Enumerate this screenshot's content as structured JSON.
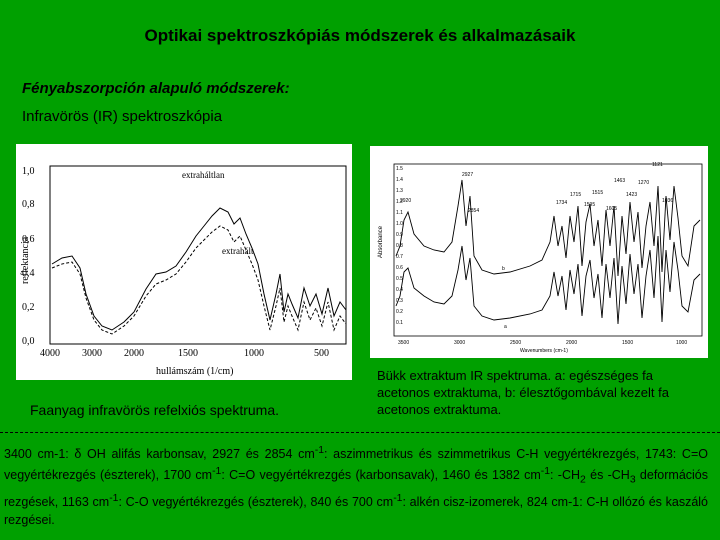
{
  "title": "Optikai spektroszkópiás módszerek és alkalmazásaik",
  "section": {
    "heading": "Fényabszorpción alapuló módszerek:",
    "subheading": "Infravörös (IR) spektroszkópia"
  },
  "figure1": {
    "ylabel": "reflektancia",
    "xlabel": "hullámszám (1/cm)",
    "yticks": [
      "1,0",
      "0,8",
      "0,6",
      "0,4",
      "0,2",
      "0,0"
    ],
    "xticks": [
      "4000",
      "3000",
      "2000",
      "1500",
      "1000",
      "500"
    ],
    "curve_labels": [
      "extraháltlan",
      "extrahált"
    ],
    "caption": "Faanyag infravörös refelxiós spektruma."
  },
  "figure2": {
    "ylabel": "Absorbance",
    "xlabel": "Wavenumbers (cm-1)",
    "yticks": [
      "1.5",
      "1.4",
      "1.3",
      "1.2",
      "1.1",
      "1.0",
      "0.9",
      "0.8",
      "0.7",
      "0.6",
      "0.5",
      "0.4",
      "0.3",
      "0.2",
      "0.1"
    ],
    "xticks": [
      "3500",
      "3000",
      "2500",
      "2000",
      "1500",
      "1000"
    ],
    "peak_labels": [
      "1121",
      "2927",
      "1463",
      "1270",
      "2920",
      "1715",
      "1515",
      "1423",
      "1036",
      "1734",
      "1595",
      "1605",
      "2854"
    ],
    "curve_labels": [
      "b",
      "a"
    ],
    "caption": "Bükk extraktum IR spektruma. a: egészséges fa acetonos extraktuma, b: élesztőgombával kezelt fa acetonos extraktuma."
  },
  "notes": {
    "p1": "3400 cm-1: δ OH alifás karbonsav, 2927 és 2854 cm",
    "sup1": "-1",
    "p2": ": aszimmetrikus és szimmetrikus C-H vegyértékrezgés, 1743: C=O vegyértékrezgés (észterek), 1700 cm",
    "sup2": "-1",
    "p3": ": C=O vegyértékrezgés (karbonsavak), 1460 és 1382 cm",
    "sup3": "-1",
    "p4": ": -CH",
    "sub4": "2",
    "p5": " és -CH",
    "sub5": "3",
    "p6": " deformációs rezgések, 1163 cm",
    "sup6": "-1",
    "p7": ": C-O vegyértékrezgés (észterek), 840 és 700 cm",
    "sup7": "-1",
    "p8": ": alkén cisz-izomerek, 824 cm-1: C-H ollózó és kaszáló rezgései."
  }
}
